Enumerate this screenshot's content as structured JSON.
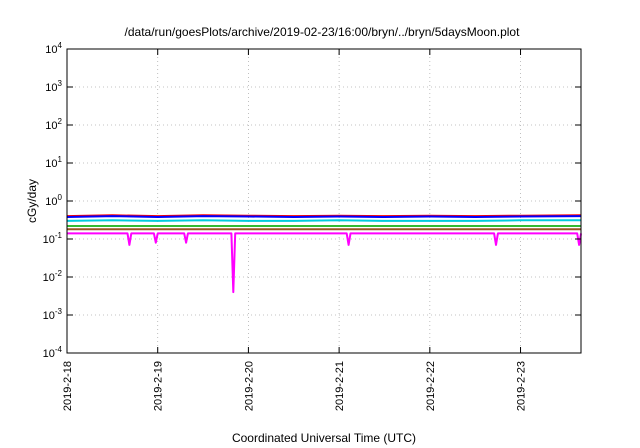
{
  "chart_data": {
    "type": "line",
    "title": "/data/run/goesPlots/archive/2019-02-23/16:00/bryn/../bryn/5daysMoon.plot",
    "xlabel": "Coordinated Universal Time (UTC)",
    "ylabel": "cGy/day",
    "y_scale": "log",
    "ylim": [
      0.0001,
      10000
    ],
    "y_ticks": [
      {
        "base": "10",
        "exp": "-4",
        "value": 0.0001
      },
      {
        "base": "10",
        "exp": "-3",
        "value": 0.001
      },
      {
        "base": "10",
        "exp": "-2",
        "value": 0.01
      },
      {
        "base": "10",
        "exp": "-1",
        "value": 0.1
      },
      {
        "base": "10",
        "exp": "0",
        "value": 1
      },
      {
        "base": "10",
        "exp": "1",
        "value": 10
      },
      {
        "base": "10",
        "exp": "2",
        "value": 100
      },
      {
        "base": "10",
        "exp": "3",
        "value": 1000
      },
      {
        "base": "10",
        "exp": "4",
        "value": 10000
      }
    ],
    "x_start": "2019-02-18",
    "x_end": "2019-02-23 16:00",
    "x_ticks": [
      "2019-2-18",
      "2019-2-19",
      "2019-2-20",
      "2019-2-21",
      "2019-2-22",
      "2019-2-23"
    ],
    "grid": true,
    "legend": "none",
    "series": [
      {
        "color": "#ff0000",
        "points": [
          [
            "2019-02-18 00:00",
            0.4
          ],
          [
            "2019-02-18 12:00",
            0.42
          ],
          [
            "2019-02-19 00:00",
            0.4
          ],
          [
            "2019-02-19 12:00",
            0.42
          ],
          [
            "2019-02-20 00:00",
            0.41
          ],
          [
            "2019-02-20 12:00",
            0.4
          ],
          [
            "2019-02-21 00:00",
            0.41
          ],
          [
            "2019-02-21 12:00",
            0.4
          ],
          [
            "2019-02-22 00:00",
            0.41
          ],
          [
            "2019-02-22 12:00",
            0.4
          ],
          [
            "2019-02-23 00:00",
            0.41
          ],
          [
            "2019-02-23 16:00",
            0.42
          ]
        ]
      },
      {
        "color": "#0000ff",
        "points": [
          [
            "2019-02-18 00:00",
            0.38
          ],
          [
            "2019-02-18 12:00",
            0.4
          ],
          [
            "2019-02-19 00:00",
            0.38
          ],
          [
            "2019-02-19 12:00",
            0.4
          ],
          [
            "2019-02-20 00:00",
            0.39
          ],
          [
            "2019-02-20 12:00",
            0.38
          ],
          [
            "2019-02-21 00:00",
            0.39
          ],
          [
            "2019-02-21 12:00",
            0.38
          ],
          [
            "2019-02-22 00:00",
            0.39
          ],
          [
            "2019-02-22 12:00",
            0.38
          ],
          [
            "2019-02-23 00:00",
            0.39
          ],
          [
            "2019-02-23 16:00",
            0.4
          ]
        ]
      },
      {
        "color": "#00ccdd",
        "points": [
          [
            "2019-02-18 00:00",
            0.3
          ],
          [
            "2019-02-18 12:00",
            0.31
          ],
          [
            "2019-02-19 00:00",
            0.3
          ],
          [
            "2019-02-19 12:00",
            0.31
          ],
          [
            "2019-02-20 00:00",
            0.3
          ],
          [
            "2019-02-20 12:00",
            0.3
          ],
          [
            "2019-02-21 00:00",
            0.31
          ],
          [
            "2019-02-21 12:00",
            0.3
          ],
          [
            "2019-02-22 00:00",
            0.3
          ],
          [
            "2019-02-22 12:00",
            0.3
          ],
          [
            "2019-02-23 00:00",
            0.31
          ],
          [
            "2019-02-23 16:00",
            0.31
          ]
        ]
      },
      {
        "color": "#33bb33",
        "points": [
          [
            "2019-02-18 00:00",
            0.22
          ],
          [
            "2019-02-18 12:00",
            0.22
          ],
          [
            "2019-02-19 00:00",
            0.22
          ],
          [
            "2019-02-19 12:00",
            0.22
          ],
          [
            "2019-02-20 00:00",
            0.22
          ],
          [
            "2019-02-20 12:00",
            0.22
          ],
          [
            "2019-02-21 00:00",
            0.22
          ],
          [
            "2019-02-21 12:00",
            0.22
          ],
          [
            "2019-02-22 00:00",
            0.22
          ],
          [
            "2019-02-22 12:00",
            0.22
          ],
          [
            "2019-02-23 00:00",
            0.22
          ],
          [
            "2019-02-23 16:00",
            0.22
          ]
        ]
      },
      {
        "color": "#995522",
        "points": [
          [
            "2019-02-18 00:00",
            0.18
          ],
          [
            "2019-02-18 12:00",
            0.18
          ],
          [
            "2019-02-19 00:00",
            0.18
          ],
          [
            "2019-02-19 12:00",
            0.18
          ],
          [
            "2019-02-20 00:00",
            0.18
          ],
          [
            "2019-02-20 12:00",
            0.18
          ],
          [
            "2019-02-21 00:00",
            0.18
          ],
          [
            "2019-02-21 12:00",
            0.18
          ],
          [
            "2019-02-22 00:00",
            0.18
          ],
          [
            "2019-02-22 12:00",
            0.18
          ],
          [
            "2019-02-23 00:00",
            0.18
          ],
          [
            "2019-02-23 16:00",
            0.18
          ]
        ]
      },
      {
        "color": "#ff00ff",
        "points": [
          [
            "2019-02-18 00:00",
            0.14
          ],
          [
            "2019-02-18 16:00",
            0.14
          ],
          [
            "2019-02-18 16:30",
            0.07
          ],
          [
            "2019-02-18 17:00",
            0.14
          ],
          [
            "2019-02-18 23:00",
            0.14
          ],
          [
            "2019-02-18 23:30",
            0.08
          ],
          [
            "2019-02-19 00:00",
            0.14
          ],
          [
            "2019-02-19 07:00",
            0.14
          ],
          [
            "2019-02-19 07:30",
            0.08
          ],
          [
            "2019-02-19 08:00",
            0.14
          ],
          [
            "2019-02-19 19:30",
            0.14
          ],
          [
            "2019-02-19 20:00",
            0.004
          ],
          [
            "2019-02-19 20:30",
            0.14
          ],
          [
            "2019-02-21 02:00",
            0.14
          ],
          [
            "2019-02-21 02:30",
            0.07
          ],
          [
            "2019-02-21 03:00",
            0.14
          ],
          [
            "2019-02-22 17:00",
            0.14
          ],
          [
            "2019-02-22 17:30",
            0.07
          ],
          [
            "2019-02-22 18:00",
            0.14
          ],
          [
            "2019-02-23 15:00",
            0.14
          ],
          [
            "2019-02-23 15:30",
            0.07
          ],
          [
            "2019-02-23 16:00",
            0.14
          ]
        ]
      }
    ]
  }
}
